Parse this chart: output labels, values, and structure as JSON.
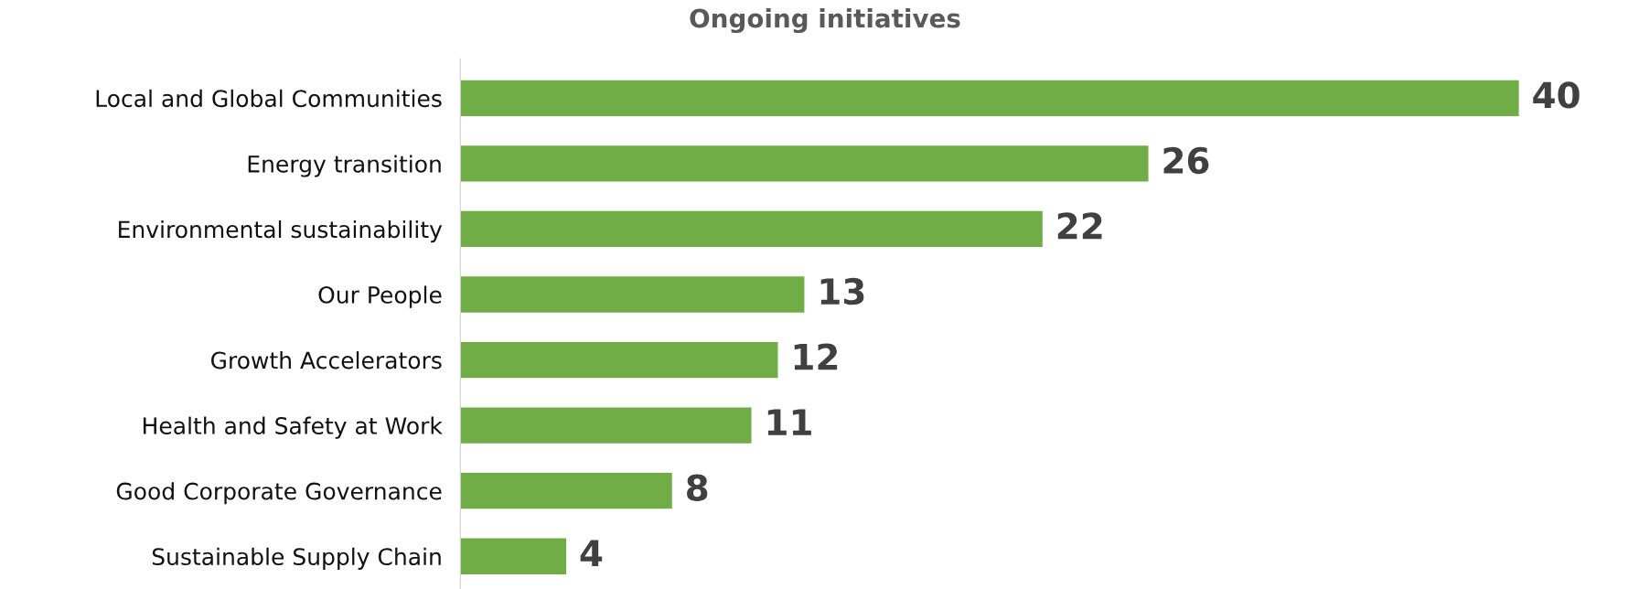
{
  "chart_data": {
    "type": "bar",
    "orientation": "horizontal",
    "title": "Ongoing initiatives",
    "categories": [
      "Local and Global Communities",
      "Energy transition",
      "Environmental sustainability",
      "Our People",
      "Growth Accelerators",
      "Health and Safety at Work",
      "Good Corporate Governance",
      "Sustainable Supply Chain"
    ],
    "values": [
      40,
      26,
      22,
      13,
      12,
      11,
      8,
      4
    ],
    "color": "#70ad47",
    "data_labels": true,
    "grid": false,
    "legend": false
  }
}
